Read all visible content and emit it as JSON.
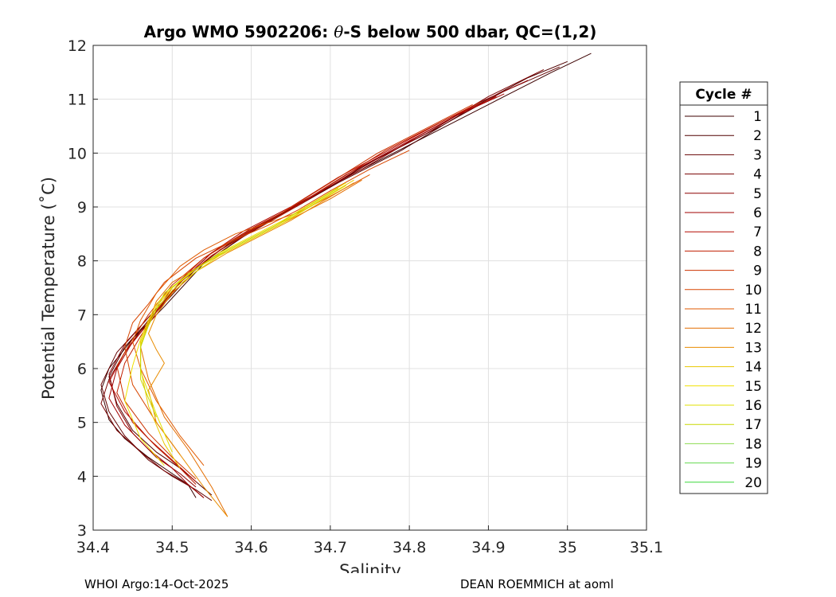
{
  "chart_data": {
    "type": "line",
    "title_prefix": "Argo WMO 5902206: ",
    "title_theta": "θ",
    "title_suffix": "-S below 500 dbar,  QC=(1,2)",
    "xlabel": "Salinity",
    "ylabel": "Potential Temperature (˚C)",
    "xlim": [
      34.4,
      35.1
    ],
    "ylim": [
      3,
      12
    ],
    "xticks": [
      34.4,
      34.5,
      34.6,
      34.7,
      34.8,
      34.9,
      35,
      35.1
    ],
    "xtick_labels": [
      "34.4",
      "34.5",
      "34.6",
      "34.7",
      "34.8",
      "34.9",
      "35",
      "35.1"
    ],
    "yticks": [
      3,
      4,
      5,
      6,
      7,
      8,
      9,
      10,
      11,
      12
    ],
    "ytick_labels": [
      "3",
      "4",
      "5",
      "6",
      "7",
      "8",
      "9",
      "10",
      "11",
      "12"
    ],
    "grid": true,
    "legend_title": "Cycle #",
    "legend_position": "outside-right",
    "series": [
      {
        "name": "1",
        "color": "#3c0000",
        "x": [
          35.03,
          34.98,
          34.9,
          34.8,
          34.72,
          34.66,
          34.6,
          34.54,
          34.49,
          34.45,
          34.42,
          34.41,
          34.42,
          34.44,
          34.47,
          34.5,
          34.52,
          34.53
        ],
        "y": [
          11.85,
          11.5,
          10.9,
          10.15,
          9.55,
          9.05,
          8.55,
          7.95,
          7.15,
          6.55,
          6.0,
          5.6,
          5.05,
          4.7,
          4.35,
          4.05,
          3.85,
          3.6
        ]
      },
      {
        "name": "2",
        "color": "#500000",
        "x": [
          35.0,
          34.95,
          34.88,
          34.79,
          34.71,
          34.65,
          34.59,
          34.53,
          34.48,
          34.44,
          34.42,
          34.43,
          34.45,
          34.48,
          34.51,
          34.53,
          34.55
        ],
        "y": [
          11.7,
          11.4,
          10.85,
          10.05,
          9.45,
          8.95,
          8.45,
          7.85,
          7.05,
          6.4,
          5.85,
          5.35,
          4.85,
          4.45,
          4.15,
          3.9,
          3.65
        ]
      },
      {
        "name": "3",
        "color": "#640000",
        "x": [
          34.99,
          34.92,
          34.84,
          34.76,
          34.69,
          34.63,
          34.57,
          34.52,
          34.47,
          34.43,
          34.41,
          34.42,
          34.44,
          34.47,
          34.5,
          34.53,
          34.55
        ],
        "y": [
          11.6,
          11.15,
          10.5,
          9.9,
          9.3,
          8.8,
          8.3,
          7.75,
          6.95,
          6.3,
          5.7,
          5.2,
          4.75,
          4.3,
          4.0,
          3.75,
          3.55
        ]
      },
      {
        "name": "4",
        "color": "#780000",
        "x": [
          34.97,
          34.9,
          34.82,
          34.74,
          34.68,
          34.62,
          34.56,
          34.51,
          34.47,
          34.44,
          34.42,
          34.41,
          34.43,
          34.46,
          34.49,
          34.52,
          34.54
        ],
        "y": [
          11.55,
          11.05,
          10.35,
          9.75,
          9.2,
          8.7,
          8.2,
          7.6,
          6.9,
          6.3,
          5.8,
          5.35,
          4.85,
          4.45,
          4.1,
          3.85,
          3.6
        ]
      },
      {
        "name": "5",
        "color": "#8c0000",
        "x": [
          34.95,
          34.89,
          34.81,
          34.74,
          34.67,
          34.61,
          34.55,
          34.51,
          34.47,
          34.44,
          34.42,
          34.43,
          34.45,
          34.48,
          34.51,
          34.53
        ],
        "y": [
          11.35,
          10.95,
          10.3,
          9.7,
          9.15,
          8.65,
          8.15,
          7.6,
          6.95,
          6.45,
          5.9,
          5.3,
          4.8,
          4.35,
          4.05,
          3.8
        ]
      },
      {
        "name": "6",
        "color": "#a00000",
        "x": [
          34.92,
          34.86,
          34.79,
          34.72,
          34.66,
          34.6,
          34.55,
          34.51,
          34.48,
          34.45,
          34.43,
          34.42,
          34.44,
          34.47,
          34.5,
          34.52,
          34.54
        ],
        "y": [
          11.1,
          10.7,
          10.15,
          9.6,
          9.05,
          8.6,
          8.15,
          7.6,
          7.0,
          6.5,
          6.0,
          5.45,
          4.95,
          4.5,
          4.15,
          3.85,
          3.6
        ]
      },
      {
        "name": "7",
        "color": "#b40a00",
        "x": [
          34.91,
          34.85,
          34.78,
          34.71,
          34.65,
          34.59,
          34.54,
          34.5,
          34.47,
          34.44,
          34.42,
          34.44,
          34.47,
          34.5,
          34.53
        ],
        "y": [
          11.05,
          10.65,
          10.1,
          9.55,
          9.0,
          8.55,
          8.05,
          7.5,
          6.85,
          6.3,
          5.75,
          5.2,
          4.7,
          4.3,
          3.9
        ]
      },
      {
        "name": "8",
        "color": "#c01e00",
        "x": [
          34.89,
          34.83,
          34.77,
          34.71,
          34.65,
          34.6,
          34.55,
          34.51,
          34.48,
          34.46,
          34.44,
          34.43,
          34.45,
          34.48,
          34.51,
          34.53
        ],
        "y": [
          10.95,
          10.5,
          10.05,
          9.5,
          8.95,
          8.55,
          8.1,
          7.6,
          7.05,
          6.6,
          6.1,
          5.55,
          5.0,
          4.55,
          4.15,
          3.85
        ]
      },
      {
        "name": "9",
        "color": "#cc3200",
        "x": [
          34.88,
          34.82,
          34.76,
          34.7,
          34.64,
          34.59,
          34.54,
          34.5,
          34.47,
          34.45,
          34.43,
          34.44,
          34.47,
          34.5,
          34.53
        ],
        "y": [
          10.9,
          10.45,
          10.0,
          9.45,
          8.9,
          8.5,
          8.05,
          7.55,
          7.0,
          6.55,
          6.05,
          5.4,
          4.8,
          4.35,
          3.95
        ]
      },
      {
        "name": "10",
        "color": "#d84600",
        "x": [
          34.8,
          34.75,
          34.7,
          34.66,
          34.62,
          34.58,
          34.53,
          34.49,
          34.47,
          34.45,
          34.44,
          34.45,
          34.48,
          34.51
        ],
        "y": [
          10.05,
          9.7,
          9.3,
          8.95,
          8.65,
          8.4,
          8.05,
          7.6,
          7.2,
          6.85,
          6.4,
          5.7,
          5.0,
          4.4
        ]
      },
      {
        "name": "11",
        "color": "#e05a00",
        "x": [
          34.75,
          34.7,
          34.66,
          34.62,
          34.58,
          34.54,
          34.51,
          34.48,
          34.46,
          34.45,
          34.46,
          34.48,
          34.51,
          34.54
        ],
        "y": [
          9.6,
          9.2,
          8.9,
          8.7,
          8.5,
          8.2,
          7.9,
          7.4,
          6.9,
          6.5,
          6.0,
          5.4,
          4.75,
          4.2
        ]
      },
      {
        "name": "12",
        "color": "#e46e00",
        "x": [
          34.74,
          34.7,
          34.66,
          34.62,
          34.58,
          34.54,
          34.5,
          34.48,
          34.47,
          34.46,
          34.47,
          34.49,
          34.52,
          34.55,
          34.57
        ],
        "y": [
          9.5,
          9.15,
          8.85,
          8.55,
          8.25,
          7.95,
          7.6,
          7.25,
          6.85,
          6.4,
          5.8,
          5.1,
          4.5,
          3.8,
          3.25
        ]
      },
      {
        "name": "13",
        "color": "#e88c00",
        "x": [
          34.73,
          34.69,
          34.65,
          34.61,
          34.57,
          34.53,
          34.5,
          34.48,
          34.47,
          34.48,
          34.49,
          34.47,
          34.48,
          34.51,
          34.54,
          34.57
        ],
        "y": [
          9.45,
          9.1,
          8.75,
          8.45,
          8.15,
          7.8,
          7.4,
          7.0,
          6.65,
          6.35,
          6.1,
          5.6,
          5.0,
          4.4,
          3.8,
          3.25
        ]
      },
      {
        "name": "14",
        "color": "#e8c800",
        "x": [
          34.73,
          34.69,
          34.65,
          34.61,
          34.57,
          34.53,
          34.5,
          34.48,
          34.47,
          34.46,
          34.46,
          34.47,
          34.49,
          34.51
        ],
        "y": [
          9.5,
          9.15,
          8.8,
          8.5,
          8.2,
          7.85,
          7.5,
          7.15,
          6.85,
          6.5,
          6.0,
          5.3,
          4.6,
          4.15
        ]
      },
      {
        "name": "15",
        "color": "#f0e000",
        "x": [
          34.72,
          34.68,
          34.64,
          34.6,
          34.56,
          34.53,
          34.5,
          34.48,
          34.47,
          34.46,
          34.45,
          34.44,
          34.46,
          34.49
        ],
        "y": [
          9.45,
          9.1,
          8.75,
          8.45,
          8.15,
          7.85,
          7.5,
          7.2,
          6.9,
          6.55,
          6.05,
          5.4,
          4.7,
          4.2
        ]
      },
      {
        "name": "16",
        "color": "#e0e000",
        "x": [
          34.72,
          34.68,
          34.64,
          34.6,
          34.56,
          34.53,
          34.5,
          34.48,
          34.47,
          34.46,
          34.46,
          34.48,
          34.5
        ],
        "y": [
          9.4,
          9.05,
          8.7,
          8.4,
          8.1,
          7.8,
          7.45,
          7.1,
          6.8,
          6.45,
          5.95,
          5.15,
          4.45
        ]
      },
      {
        "name": "17",
        "color": "#c8d800",
        "x": [
          34.71,
          34.67,
          34.63,
          34.59,
          34.55,
          34.52,
          34.49,
          34.48,
          34.47,
          34.46,
          34.46,
          34.48
        ],
        "y": [
          9.35,
          9.0,
          8.65,
          8.35,
          8.05,
          7.75,
          7.4,
          7.1,
          6.8,
          6.4,
          5.8,
          5.1
        ]
      },
      {
        "name": "18",
        "color": "#8cdc50",
        "x": [],
        "y": []
      },
      {
        "name": "19",
        "color": "#64d850",
        "x": [],
        "y": []
      },
      {
        "name": "20",
        "color": "#3cd83c",
        "x": [],
        "y": []
      }
    ]
  },
  "footer": {
    "left": "WHOI Argo:14-Oct-2025",
    "right": "DEAN ROEMMICH at aoml"
  }
}
